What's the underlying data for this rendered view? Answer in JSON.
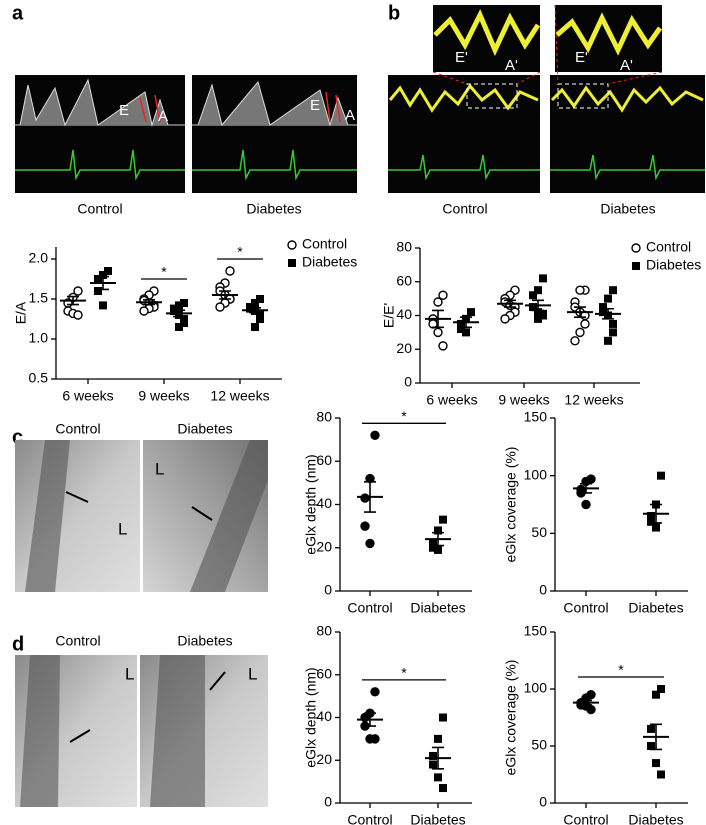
{
  "figure": {
    "a": {
      "letter": "a",
      "images": [
        {
          "label": "Control",
          "marks": [
            "E",
            "A"
          ]
        },
        {
          "label": "Diabetes",
          "marks": [
            "E",
            "A"
          ]
        }
      ]
    },
    "b": {
      "letter": "b",
      "images": [
        {
          "label": "Control",
          "marks": [
            "E'",
            "A'"
          ]
        },
        {
          "label": "Diabetes",
          "marks": [
            "E'",
            "A'"
          ]
        }
      ]
    },
    "c": {
      "letter": "c",
      "images": [
        {
          "label": "Control",
          "marks": [
            "L"
          ]
        },
        {
          "label": "Diabetes",
          "marks": [
            "L"
          ]
        }
      ]
    },
    "d": {
      "letter": "d",
      "images": [
        {
          "label": "Control",
          "marks": [
            "L"
          ]
        },
        {
          "label": "Diabetes",
          "marks": [
            "L"
          ]
        }
      ]
    }
  },
  "chart_data": [
    {
      "type": "dot",
      "ylabel": "E/A",
      "ylim": [
        0.5,
        2.15
      ],
      "yticks": [
        0.5,
        {
          "value": 1,
          "label": "1.0"
        },
        1.5,
        {
          "value": 2,
          "label": "2.0"
        }
      ],
      "categories": [
        "6 weeks",
        "9 weeks",
        "12 weeks"
      ],
      "series": [
        {
          "name": "Control",
          "marker": "open-circle",
          "points": [
            [
              1.6,
              1.52,
              1.45,
              1.35,
              1.32,
              1.3
            ],
            [
              1.6,
              1.55,
              1.5,
              1.48,
              1.45,
              1.42,
              1.4,
              1.38,
              1.35
            ],
            [
              1.85,
              1.7,
              1.65,
              1.6,
              1.55,
              1.5,
              1.5,
              1.45,
              1.4
            ]
          ],
          "mean": [
            1.48,
            1.46,
            1.55
          ],
          "sem": [
            0.05,
            0.03,
            0.05
          ]
        },
        {
          "name": "Diabetes",
          "marker": "square",
          "points": [
            [
              1.85,
              1.8,
              1.75,
              1.6,
              1.42
            ],
            [
              1.45,
              1.42,
              1.38,
              1.35,
              1.3,
              1.25,
              1.2,
              1.15
            ],
            [
              1.5,
              1.45,
              1.4,
              1.38,
              1.35,
              1.3,
              1.25,
              1.15
            ]
          ],
          "mean": [
            1.7,
            1.32,
            1.36
          ],
          "sem": [
            0.08,
            0.04,
            0.03
          ]
        }
      ],
      "annotations": [
        {
          "text": "*",
          "category": "9 weeks"
        },
        {
          "text": "*",
          "category": "12 weeks"
        }
      ]
    },
    {
      "type": "dot",
      "ylabel": "E/E'",
      "ylim": [
        0,
        80
      ],
      "yticks": [
        0,
        20,
        40,
        60,
        80
      ],
      "categories": [
        "6 weeks",
        "9 weeks",
        "12 weeks"
      ],
      "series": [
        {
          "name": "Control",
          "marker": "open-circle",
          "points": [
            [
              52,
              48,
              38,
              35,
              30,
              22
            ],
            [
              55,
              52,
              50,
              48,
              46,
              45,
              42,
              40,
              38
            ],
            [
              55,
              55,
              48,
              45,
              42,
              40,
              35,
              30,
              25
            ]
          ],
          "mean": [
            38,
            47,
            42
          ],
          "sem": [
            5,
            2,
            3
          ]
        },
        {
          "name": "Diabetes",
          "marker": "square",
          "points": [
            [
              42,
              38,
              35,
              32,
              30
            ],
            [
              62,
              55,
              52,
              45,
              42,
              41,
              40,
              38
            ],
            [
              55,
              50,
              45,
              42,
              40,
              35,
              30,
              25
            ]
          ],
          "mean": [
            36,
            46,
            41
          ],
          "sem": [
            3,
            3,
            3
          ]
        }
      ]
    },
    {
      "type": "dot",
      "ylabel": "eGlx depth (nm)",
      "ylim": [
        0,
        80
      ],
      "yticks": [
        0,
        20,
        40,
        60,
        80
      ],
      "categories": [
        "Control",
        "Diabetes"
      ],
      "markers": [
        "circle",
        "square"
      ],
      "points": [
        [
          72,
          52,
          43,
          30,
          22
        ],
        [
          33,
          28,
          22,
          20,
          19
        ]
      ],
      "mean": [
        43.5,
        24
      ],
      "sem": [
        7,
        3
      ],
      "annotations": [
        {
          "text": "*"
        }
      ]
    },
    {
      "type": "dot",
      "ylabel": "eGlx coverage (%)",
      "ylim": [
        0,
        150
      ],
      "yticks": [
        0,
        50,
        100,
        150
      ],
      "categories": [
        "Control",
        "Diabetes"
      ],
      "markers": [
        "circle",
        "square"
      ],
      "points": [
        [
          97,
          95,
          88,
          85,
          75
        ],
        [
          100,
          75,
          65,
          60,
          55
        ]
      ],
      "mean": [
        89,
        67
      ],
      "sem": [
        4,
        8
      ]
    },
    {
      "type": "dot",
      "ylabel": "eGlx depth (nm)",
      "ylim": [
        0,
        80
      ],
      "yticks": [
        0,
        20,
        40,
        60,
        80
      ],
      "categories": [
        "Control",
        "Diabetes"
      ],
      "markers": [
        "circle",
        "square"
      ],
      "points": [
        [
          52,
          42,
          40,
          36,
          30,
          30
        ],
        [
          40,
          30,
          22,
          18,
          12,
          7
        ]
      ],
      "mean": [
        39,
        21
      ],
      "sem": [
        3,
        5
      ],
      "annotations": [
        {
          "text": "*"
        }
      ]
    },
    {
      "type": "dot",
      "ylabel": "eGlx coverage (%)",
      "ylim": [
        0,
        150
      ],
      "yticks": [
        0,
        50,
        100,
        150
      ],
      "categories": [
        "Control",
        "Diabetes"
      ],
      "markers": [
        "circle",
        "square"
      ],
      "points": [
        [
          95,
          92,
          88,
          86,
          85,
          82
        ],
        [
          100,
          95,
          65,
          50,
          35,
          25
        ]
      ],
      "mean": [
        88,
        58
      ],
      "sem": [
        2,
        11
      ],
      "annotations": [
        {
          "text": "*"
        }
      ]
    }
  ]
}
